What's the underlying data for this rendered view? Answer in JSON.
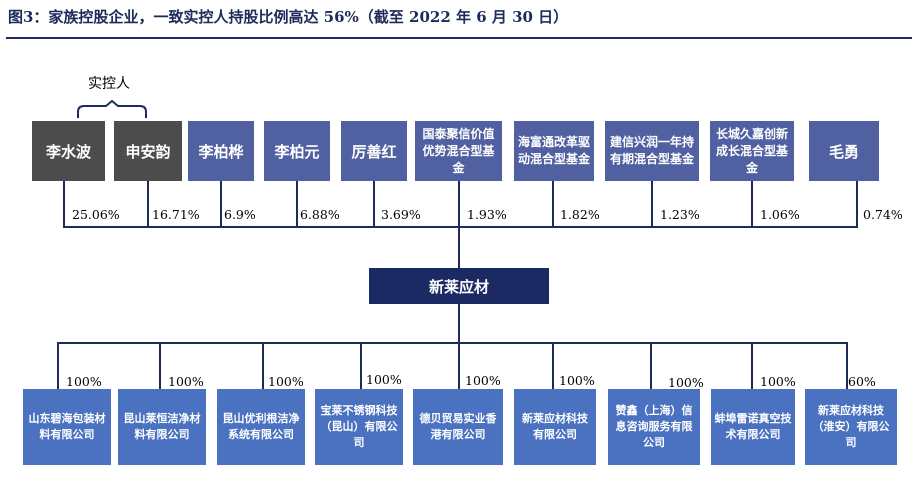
{
  "title": "图3：家族控股企业，一致实控人持股比例高达 56%（截至 2022 年 6 月 30 日）",
  "controller_label": "实控人",
  "center": "新莱应材",
  "shareholders": [
    {
      "name": "李水波",
      "pct": "25.06%",
      "type": "controller"
    },
    {
      "name": "申安韵",
      "pct": "16.71%",
      "type": "controller"
    },
    {
      "name": "李柏桦",
      "pct": "6.9%",
      "type": "person"
    },
    {
      "name": "李柏元",
      "pct": "6.88%",
      "type": "person"
    },
    {
      "name": "厉善红",
      "pct": "3.69%",
      "type": "person"
    },
    {
      "name": "国泰聚信价值优势混合型基金",
      "pct": "1.93%",
      "type": "fund"
    },
    {
      "name": "海富通改革驱动混合型基金",
      "pct": "1.82%",
      "type": "fund"
    },
    {
      "name": "建信兴润一年持有期混合型基金",
      "pct": "1.23%",
      "type": "fund"
    },
    {
      "name": "长城久嘉创新成长混合型基金",
      "pct": "1.06%",
      "type": "fund"
    },
    {
      "name": "毛勇",
      "pct": "0.74%",
      "type": "person"
    }
  ],
  "subsidiaries": [
    {
      "name": "山东碧海包装材料有限公司",
      "pct": "100%"
    },
    {
      "name": "昆山莱恒洁净材料有限公司",
      "pct": "100%"
    },
    {
      "name": "昆山优利根洁净系统有限公司",
      "pct": "100%"
    },
    {
      "name": "宝莱不锈钢科技（昆山）有限公司",
      "pct": "100%"
    },
    {
      "name": "德贝贸易实业香港有限公司",
      "pct": "100%"
    },
    {
      "name": "新莱应材科技有限公司",
      "pct": "100%"
    },
    {
      "name": "赞鑫（上海）信息咨询服务有限公司",
      "pct": "100%"
    },
    {
      "name": "蚌埠雷诺真空技术有限公司",
      "pct": "100%"
    },
    {
      "name": "新莱应材科技（淮安）有限公司",
      "pct": "60%"
    }
  ],
  "colors": {
    "title": "#1c2b5a",
    "controller": "#4c4c4c",
    "shareholder": "#5060a0",
    "company": "#1b2a63",
    "subsidiary": "#4a72c0"
  }
}
